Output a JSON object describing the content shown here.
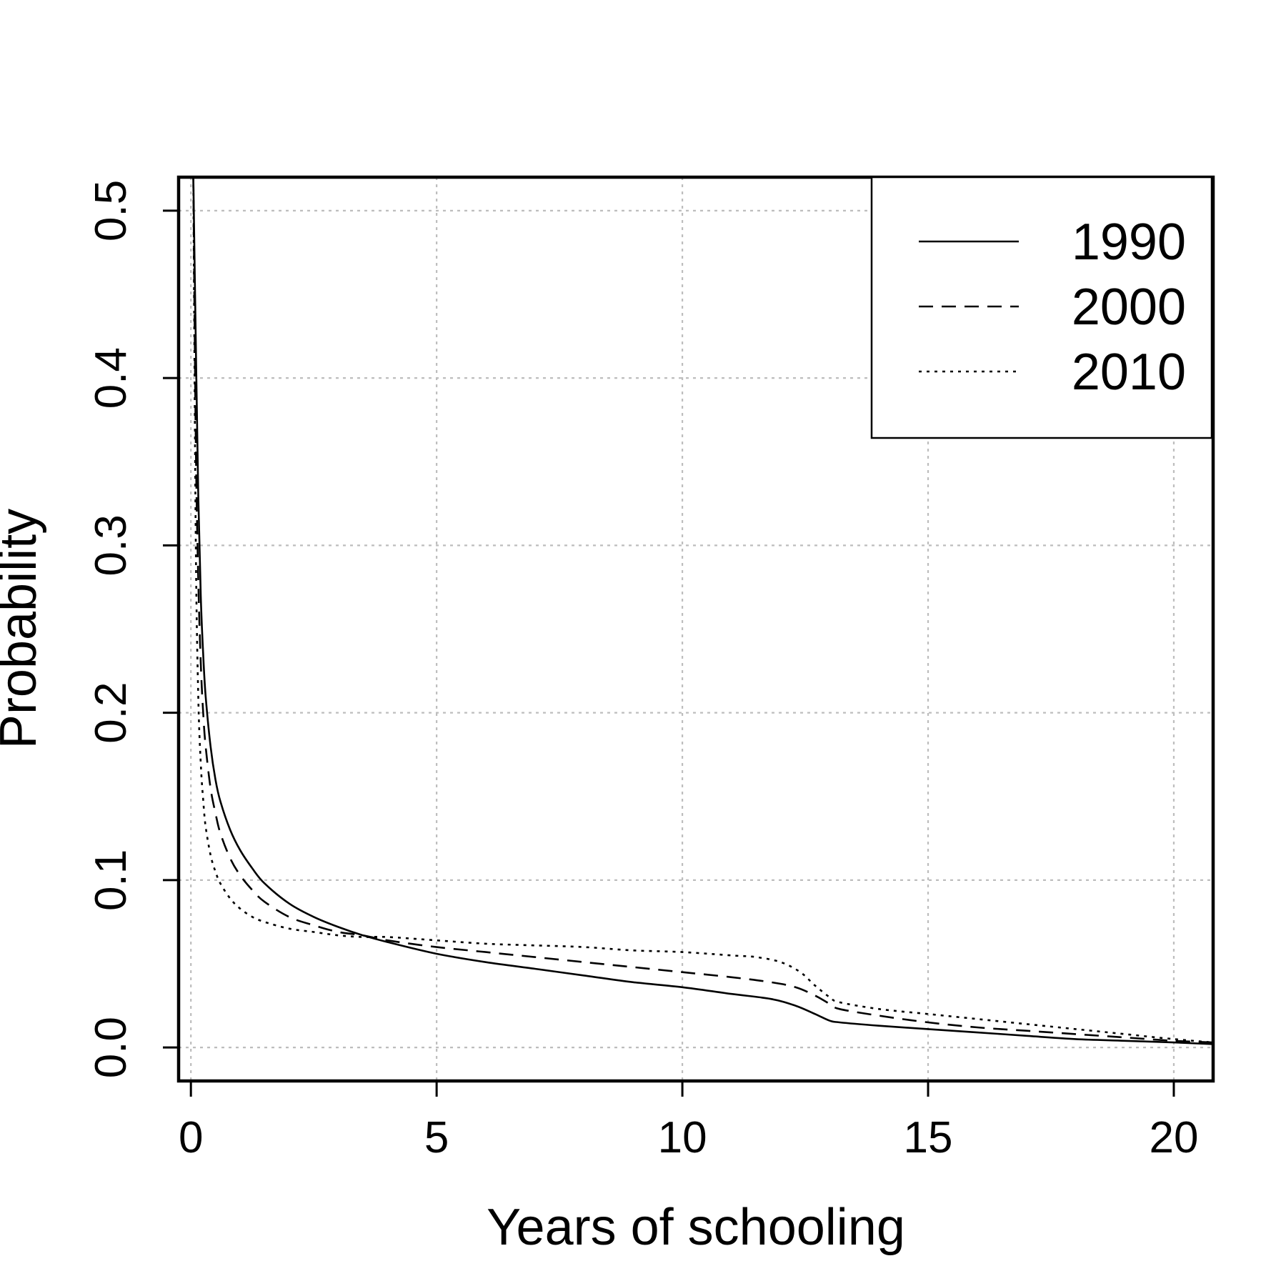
{
  "chart_data": {
    "type": "line",
    "title": "",
    "xlabel": "Years of schooling",
    "ylabel": "Probability",
    "xlim": [
      -0.25,
      20.8
    ],
    "ylim": [
      -0.02,
      0.52
    ],
    "xticks": [
      0,
      5,
      10,
      15,
      20
    ],
    "yticks": [
      0.0,
      0.1,
      0.2,
      0.3,
      0.4,
      0.5
    ],
    "xtick_labels": [
      "0",
      "5",
      "10",
      "15",
      "20"
    ],
    "ytick_labels": [
      "0.0",
      "0.1",
      "0.2",
      "0.3",
      "0.4",
      "0.5"
    ],
    "grid": true,
    "legend_position": "top-right",
    "series": [
      {
        "name": "1990",
        "line_style": "solid",
        "x": [
          0.05,
          0.1,
          0.15,
          0.2,
          0.25,
          0.3,
          0.4,
          0.5,
          0.6,
          0.8,
          1.0,
          1.25,
          1.5,
          2.0,
          2.5,
          3.0,
          3.5,
          4.0,
          5.0,
          6.0,
          7.0,
          8.0,
          9.0,
          10.0,
          11.0,
          11.8,
          12.3,
          12.7,
          13.0,
          13.2,
          14.0,
          15.0,
          16.0,
          17.0,
          18.0,
          19.0,
          20.0,
          20.8
        ],
        "y": [
          0.52,
          0.42,
          0.33,
          0.27,
          0.235,
          0.21,
          0.18,
          0.16,
          0.147,
          0.13,
          0.118,
          0.107,
          0.098,
          0.086,
          0.078,
          0.072,
          0.067,
          0.063,
          0.056,
          0.051,
          0.047,
          0.043,
          0.039,
          0.036,
          0.032,
          0.029,
          0.025,
          0.02,
          0.016,
          0.015,
          0.013,
          0.011,
          0.009,
          0.007,
          0.005,
          0.004,
          0.003,
          0.002
        ]
      },
      {
        "name": "2000",
        "line_style": "dashed",
        "x": [
          0.05,
          0.1,
          0.15,
          0.2,
          0.25,
          0.3,
          0.4,
          0.5,
          0.6,
          0.8,
          1.0,
          1.25,
          1.5,
          2.0,
          2.5,
          3.0,
          3.5,
          4.0,
          5.0,
          6.0,
          7.0,
          8.0,
          9.0,
          10.0,
          11.0,
          11.8,
          12.3,
          12.7,
          13.0,
          13.2,
          14.0,
          15.0,
          16.0,
          17.0,
          18.0,
          19.0,
          20.0,
          20.8
        ],
        "y": [
          0.52,
          0.36,
          0.28,
          0.23,
          0.2,
          0.18,
          0.155,
          0.14,
          0.128,
          0.113,
          0.103,
          0.094,
          0.087,
          0.078,
          0.073,
          0.069,
          0.067,
          0.064,
          0.06,
          0.057,
          0.054,
          0.051,
          0.048,
          0.045,
          0.042,
          0.039,
          0.036,
          0.031,
          0.026,
          0.023,
          0.019,
          0.015,
          0.012,
          0.01,
          0.008,
          0.006,
          0.004,
          0.003
        ]
      },
      {
        "name": "2010",
        "line_style": "dotted",
        "x": [
          0.05,
          0.1,
          0.15,
          0.2,
          0.25,
          0.3,
          0.4,
          0.5,
          0.6,
          0.8,
          1.0,
          1.25,
          1.5,
          2.0,
          2.5,
          3.0,
          3.5,
          4.0,
          5.0,
          6.0,
          7.0,
          8.0,
          9.0,
          10.0,
          11.0,
          11.5,
          12.0,
          12.4,
          12.7,
          13.0,
          13.2,
          14.0,
          15.0,
          16.0,
          17.0,
          18.0,
          19.0,
          20.0,
          20.8
        ],
        "y": [
          0.52,
          0.3,
          0.21,
          0.17,
          0.148,
          0.132,
          0.115,
          0.105,
          0.098,
          0.089,
          0.083,
          0.078,
          0.075,
          0.071,
          0.069,
          0.067,
          0.066,
          0.066,
          0.064,
          0.062,
          0.061,
          0.06,
          0.058,
          0.057,
          0.055,
          0.054,
          0.051,
          0.045,
          0.037,
          0.03,
          0.027,
          0.023,
          0.02,
          0.017,
          0.014,
          0.011,
          0.008,
          0.005,
          0.003
        ]
      }
    ]
  }
}
